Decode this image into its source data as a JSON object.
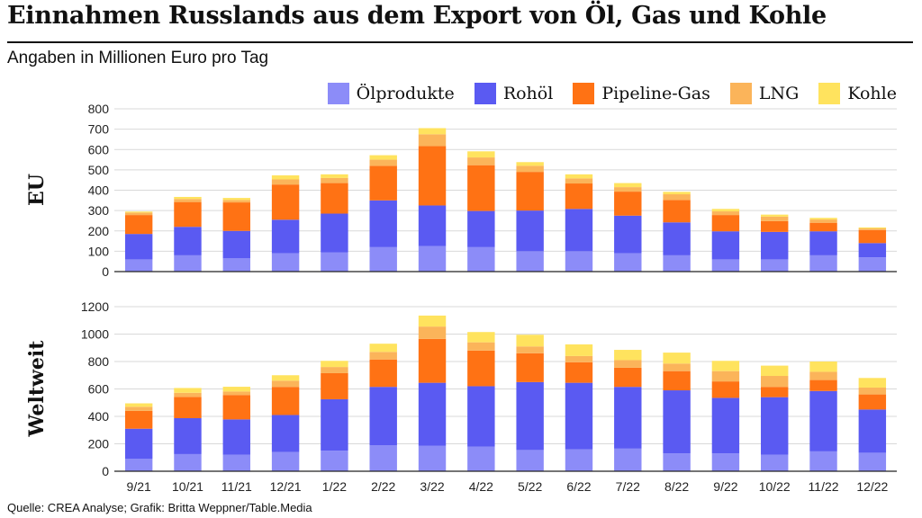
{
  "title": "Einnahmen Russlands aus dem Export von Öl, Gas und Kohle",
  "subtitle": "Angaben in Millionen Euro pro Tag",
  "source": "Quelle: CREA Analyse; Grafik: Britta Weppner/Table.Media",
  "colors": {
    "Ölprodukte": "#8c8cf8",
    "Rohöl": "#5a5af2",
    "Pipeline-Gas": "#ff7214",
    "LNG": "#fbb45a",
    "Kohle": "#ffe35e"
  },
  "chart_data": [
    {
      "type": "bar",
      "stacked": true,
      "panel_label": "EU",
      "categories": [
        "9/21",
        "10/21",
        "11/21",
        "12/21",
        "1/22",
        "2/22",
        "3/22",
        "4/22",
        "5/22",
        "6/22",
        "7/22",
        "8/22",
        "9/22",
        "10/22",
        "11/22",
        "12/22"
      ],
      "ylim": [
        0,
        800
      ],
      "yticks": [
        "0",
        "100",
        "200",
        "300",
        "400",
        "500",
        "600",
        "700",
        "800"
      ],
      "grid": true,
      "legend_position": "top-right",
      "series": [
        {
          "name": "Ölprodukte",
          "values": [
            60,
            80,
            65,
            90,
            95,
            120,
            125,
            120,
            100,
            100,
            90,
            80,
            60,
            60,
            80,
            70
          ]
        },
        {
          "name": "Rohöl",
          "values": [
            125,
            140,
            135,
            165,
            190,
            230,
            200,
            178,
            200,
            208,
            185,
            162,
            138,
            135,
            118,
            70
          ]
        },
        {
          "name": "Pipeline-Gas",
          "values": [
            93,
            122,
            140,
            173,
            150,
            170,
            292,
            225,
            190,
            125,
            118,
            110,
            80,
            53,
            42,
            64
          ]
        },
        {
          "name": "LNG",
          "values": [
            12,
            15,
            12,
            25,
            25,
            30,
            58,
            38,
            30,
            25,
            22,
            28,
            18,
            22,
            16,
            8
          ]
        },
        {
          "name": "Kohle",
          "values": [
            5,
            10,
            10,
            20,
            18,
            22,
            30,
            30,
            18,
            20,
            20,
            12,
            12,
            10,
            8,
            5
          ]
        }
      ]
    },
    {
      "type": "bar",
      "stacked": true,
      "panel_label": "Weltweit",
      "categories": [
        "9/21",
        "10/21",
        "11/21",
        "12/21",
        "1/22",
        "2/22",
        "3/22",
        "4/22",
        "5/22",
        "6/22",
        "7/22",
        "8/22",
        "9/22",
        "10/22",
        "11/22",
        "12/22"
      ],
      "ylim": [
        0,
        1200
      ],
      "yticks": [
        "0",
        "200",
        "400",
        "600",
        "800",
        "1000",
        "1200"
      ],
      "grid": true,
      "series": [
        {
          "name": "Ölprodukte",
          "values": [
            90,
            125,
            120,
            140,
            150,
            190,
            185,
            180,
            155,
            160,
            165,
            130,
            130,
            120,
            145,
            135
          ]
        },
        {
          "name": "Rohöl",
          "values": [
            220,
            262,
            258,
            270,
            375,
            425,
            460,
            440,
            495,
            485,
            450,
            460,
            405,
            420,
            440,
            315
          ]
        },
        {
          "name": "Pipeline-Gas",
          "values": [
            130,
            155,
            178,
            205,
            190,
            200,
            320,
            260,
            210,
            150,
            140,
            140,
            120,
            75,
            80,
            110
          ]
        },
        {
          "name": "LNG",
          "values": [
            30,
            30,
            25,
            45,
            45,
            55,
            90,
            60,
            50,
            45,
            55,
            55,
            75,
            80,
            60,
            50
          ]
        },
        {
          "name": "Kohle",
          "values": [
            25,
            35,
            35,
            40,
            45,
            60,
            80,
            75,
            85,
            85,
            75,
            80,
            75,
            75,
            75,
            70
          ]
        }
      ]
    }
  ]
}
